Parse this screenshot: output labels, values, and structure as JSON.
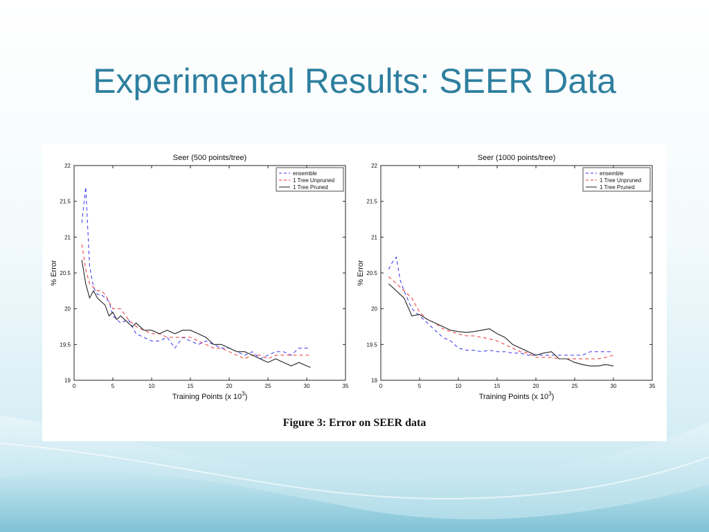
{
  "slide": {
    "title": "Experimental Results: SEER Data"
  },
  "figure": {
    "caption": "Figure 3:  Error on SEER data"
  },
  "colors": {
    "title": "#2e7f9f",
    "ensemble": "#3333ee",
    "unpruned": "#ee3333",
    "pruned": "#222222"
  },
  "chart_data": [
    {
      "type": "line",
      "title": "Seer (500 points/tree)",
      "xlabel": "Training Points (x 10",
      "xlabel_sup": "3",
      "xlabel_tail": ")",
      "ylabel": "% Error",
      "xlim": [
        0,
        35
      ],
      "ylim": [
        19,
        22
      ],
      "xticks": [
        0,
        5,
        10,
        15,
        20,
        25,
        30,
        35
      ],
      "yticks": [
        19,
        19.5,
        20,
        20.5,
        21,
        21.5,
        22
      ],
      "ytick_labels": [
        "19",
        "19.5",
        "20",
        "20.5",
        "21",
        "21.5",
        "22"
      ],
      "legend_position": "top-right",
      "series": [
        {
          "name": "ensemble",
          "style": "dashed",
          "color": "#3333ee",
          "x": [
            1,
            1.5,
            2,
            2.5,
            3,
            3.5,
            4,
            4.5,
            5,
            6,
            7,
            8,
            9,
            10,
            11,
            12,
            13,
            14,
            15,
            16,
            17,
            18,
            19,
            20,
            21,
            22,
            23,
            24,
            25,
            26,
            27,
            28,
            29,
            30,
            30.5
          ],
          "y": [
            21.2,
            21.7,
            20.6,
            20.3,
            20.2,
            20.2,
            20.15,
            20.1,
            19.9,
            19.8,
            19.85,
            19.65,
            19.6,
            19.55,
            19.55,
            19.6,
            19.45,
            19.6,
            19.55,
            19.5,
            19.55,
            19.5,
            19.45,
            19.45,
            19.4,
            19.35,
            19.4,
            19.3,
            19.35,
            19.4,
            19.4,
            19.35,
            19.45,
            19.45,
            19.45
          ]
        },
        {
          "name": "1 Tree Unpruned",
          "style": "dashed",
          "color": "#ee3333",
          "x": [
            1,
            1.5,
            2,
            2.5,
            3,
            3.5,
            4,
            4.5,
            5,
            6,
            7,
            8,
            9,
            10,
            11,
            12,
            13,
            14,
            15,
            16,
            17,
            18,
            19,
            20,
            21,
            22,
            23,
            24,
            25,
            26,
            27,
            28,
            29,
            30,
            30.5
          ],
          "y": [
            20.9,
            20.55,
            20.35,
            20.3,
            20.25,
            20.25,
            20.2,
            20.1,
            20,
            20,
            19.85,
            19.75,
            19.7,
            19.65,
            19.65,
            19.6,
            19.6,
            19.6,
            19.6,
            19.55,
            19.5,
            19.45,
            19.45,
            19.4,
            19.35,
            19.3,
            19.35,
            19.35,
            19.3,
            19.35,
            19.35,
            19.35,
            19.35,
            19.35,
            19.35
          ]
        },
        {
          "name": "1 Tree Pruned",
          "style": "solid",
          "color": "#222222",
          "x": [
            1,
            1.5,
            2,
            2.5,
            3,
            3.5,
            4,
            4.5,
            5,
            5.5,
            6,
            6.5,
            7,
            7.5,
            8,
            9,
            10,
            11,
            12,
            13,
            14,
            15,
            16,
            17,
            18,
            19,
            20,
            21,
            22,
            23,
            24,
            25,
            26,
            27,
            28,
            29,
            30,
            30.5
          ],
          "y": [
            20.68,
            20.35,
            20.15,
            20.25,
            20.15,
            20.1,
            20.05,
            19.9,
            19.95,
            19.85,
            19.9,
            19.85,
            19.8,
            19.75,
            19.8,
            19.7,
            19.7,
            19.65,
            19.7,
            19.65,
            19.7,
            19.7,
            19.65,
            19.6,
            19.5,
            19.5,
            19.45,
            19.4,
            19.4,
            19.35,
            19.3,
            19.25,
            19.3,
            19.25,
            19.2,
            19.25,
            19.2,
            19.18
          ]
        }
      ]
    },
    {
      "type": "line",
      "title": "Seer (1000 points/tree)",
      "xlabel": "Training Points (x 10",
      "xlabel_sup": "3",
      "xlabel_tail": ")",
      "ylabel": "% Error",
      "xlim": [
        0,
        35
      ],
      "ylim": [
        19,
        22
      ],
      "xticks": [
        0,
        5,
        10,
        15,
        20,
        25,
        30,
        35
      ],
      "yticks": [
        19,
        19.5,
        20,
        20.5,
        21,
        21.5,
        22
      ],
      "ytick_labels": [
        "19",
        "19.5",
        "20",
        "20.5",
        "21",
        "21.5",
        "22"
      ],
      "legend_position": "top-right",
      "series": [
        {
          "name": "ensemble",
          "style": "dashed",
          "color": "#3333ee",
          "x": [
            1,
            1.5,
            2,
            2.5,
            3,
            4,
            5,
            6,
            7,
            8,
            9,
            10,
            11,
            12,
            13,
            14,
            15,
            16,
            17,
            18,
            19,
            20,
            21,
            22,
            23,
            24,
            25,
            26,
            27,
            28,
            29,
            30
          ],
          "y": [
            20.55,
            20.65,
            20.72,
            20.4,
            20.25,
            20,
            19.9,
            19.8,
            19.7,
            19.6,
            19.55,
            19.45,
            19.42,
            19.42,
            19.4,
            19.42,
            19.4,
            19.4,
            19.38,
            19.38,
            19.35,
            19.35,
            19.35,
            19.35,
            19.35,
            19.35,
            19.35,
            19.35,
            19.4,
            19.4,
            19.4,
            19.4
          ]
        },
        {
          "name": "1 Tree Unpruned",
          "style": "dashed",
          "color": "#ee3333",
          "x": [
            1,
            2,
            3,
            4,
            5,
            6,
            7,
            8,
            9,
            10,
            11,
            12,
            13,
            14,
            15,
            16,
            17,
            18,
            19,
            20,
            21,
            22,
            23,
            24,
            25,
            26,
            27,
            28,
            29,
            30
          ],
          "y": [
            20.45,
            20.35,
            20.25,
            20.15,
            19.95,
            19.85,
            19.8,
            19.72,
            19.68,
            19.65,
            19.62,
            19.62,
            19.6,
            19.58,
            19.55,
            19.5,
            19.45,
            19.4,
            19.38,
            19.32,
            19.32,
            19.32,
            19.3,
            19.3,
            19.3,
            19.3,
            19.3,
            19.3,
            19.32,
            19.35
          ]
        },
        {
          "name": "1 Tree Pruned",
          "style": "solid",
          "color": "#222222",
          "x": [
            1,
            2,
            3,
            4,
            5,
            6,
            7,
            8,
            9,
            10,
            11,
            12,
            13,
            14,
            15,
            16,
            17,
            18,
            19,
            20,
            21,
            22,
            23,
            24,
            25,
            26,
            27,
            28,
            29,
            30
          ],
          "y": [
            20.35,
            20.25,
            20.15,
            19.9,
            19.92,
            19.85,
            19.8,
            19.75,
            19.7,
            19.68,
            19.67,
            19.68,
            19.7,
            19.72,
            19.65,
            19.6,
            19.5,
            19.45,
            19.4,
            19.35,
            19.38,
            19.4,
            19.3,
            19.3,
            19.25,
            19.22,
            19.2,
            19.2,
            19.22,
            19.2
          ]
        }
      ]
    }
  ]
}
